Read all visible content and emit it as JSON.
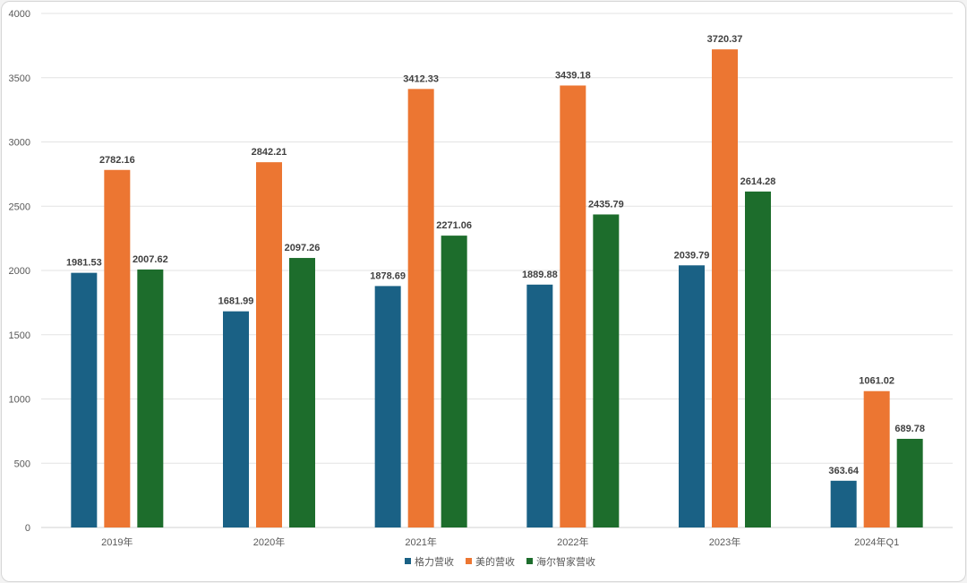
{
  "chart_data": {
    "type": "bar",
    "categories": [
      "2019年",
      "2020年",
      "2021年",
      "2022年",
      "2023年",
      "2024年Q1"
    ],
    "series": [
      {
        "name": "格力营收",
        "color": "#1a6185",
        "values": [
          1981.53,
          1681.99,
          1878.69,
          1889.88,
          2039.79,
          363.64
        ]
      },
      {
        "name": "美的营收",
        "color": "#ec7632",
        "values": [
          2782.16,
          2842.21,
          3412.33,
          3439.18,
          3720.37,
          1061.02
        ]
      },
      {
        "name": "海尔智家营收",
        "color": "#1d6d2c",
        "values": [
          2007.62,
          2097.26,
          2271.06,
          2435.79,
          2614.28,
          689.78
        ]
      }
    ],
    "ylim": [
      0,
      4000
    ],
    "yticks": [
      0,
      500,
      1000,
      1500,
      2000,
      2500,
      3000,
      3500,
      4000
    ],
    "grid": true,
    "legend_position": "bottom-center",
    "data_labels": true
  }
}
